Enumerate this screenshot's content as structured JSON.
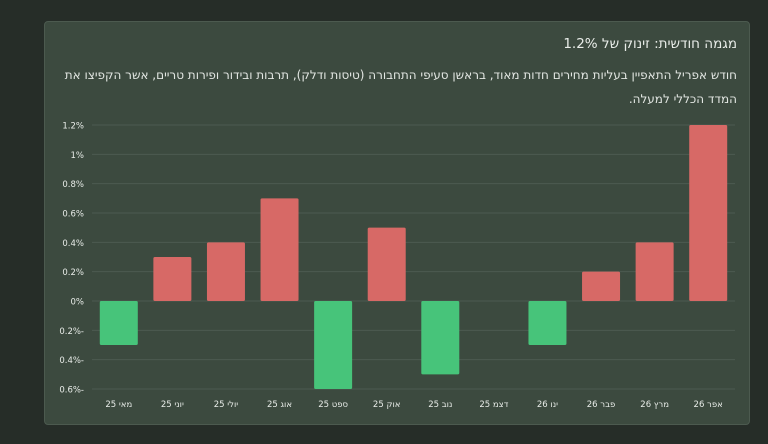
{
  "title": "מגמה חודשית: זינוק של 1.2%",
  "subtitle": "חודש אפריל התאפיין בעליות מחירים חדות מאוד, בראשן סעיפי התחבורה (טיסות ודלק), תרבות ובידור ופירות טריים, אשר הקפיצו את המדד הכללי למעלה.",
  "chart_data": {
    "type": "bar",
    "categories": [
      "מאי 25",
      "יוני 25",
      "יולי 25",
      "אוג 25",
      "ספט 25",
      "אוק 25",
      "נוב 25",
      "דצמ 25",
      "ינו 26",
      "פבר 26",
      "מרץ 26",
      "אפר 26"
    ],
    "values": [
      -0.3,
      0.3,
      0.4,
      0.7,
      -0.6,
      0.5,
      -0.5,
      0,
      -0.3,
      0.2,
      0.4,
      1.2
    ],
    "ylim": [
      -0.6,
      1.2
    ],
    "y_ticks": [
      {
        "value": 1.2,
        "label": "1.2%"
      },
      {
        "value": 1.0,
        "label": "1%"
      },
      {
        "value": 0.8,
        "label": "0.8%"
      },
      {
        "value": 0.6,
        "label": "0.6%"
      },
      {
        "value": 0.4,
        "label": "0.4%"
      },
      {
        "value": 0.2,
        "label": "0.2%"
      },
      {
        "value": 0,
        "label": "0%"
      },
      {
        "value": -0.2,
        "label": "0.2%-"
      },
      {
        "value": -0.4,
        "label": "0.4%-"
      },
      {
        "value": -0.6,
        "label": "0.6%-"
      }
    ],
    "grid": true,
    "colors": {
      "positive": "#d76966",
      "negative": "#47c47a",
      "grid": "#4d5b50",
      "tick_text": "#e8ece8"
    }
  }
}
